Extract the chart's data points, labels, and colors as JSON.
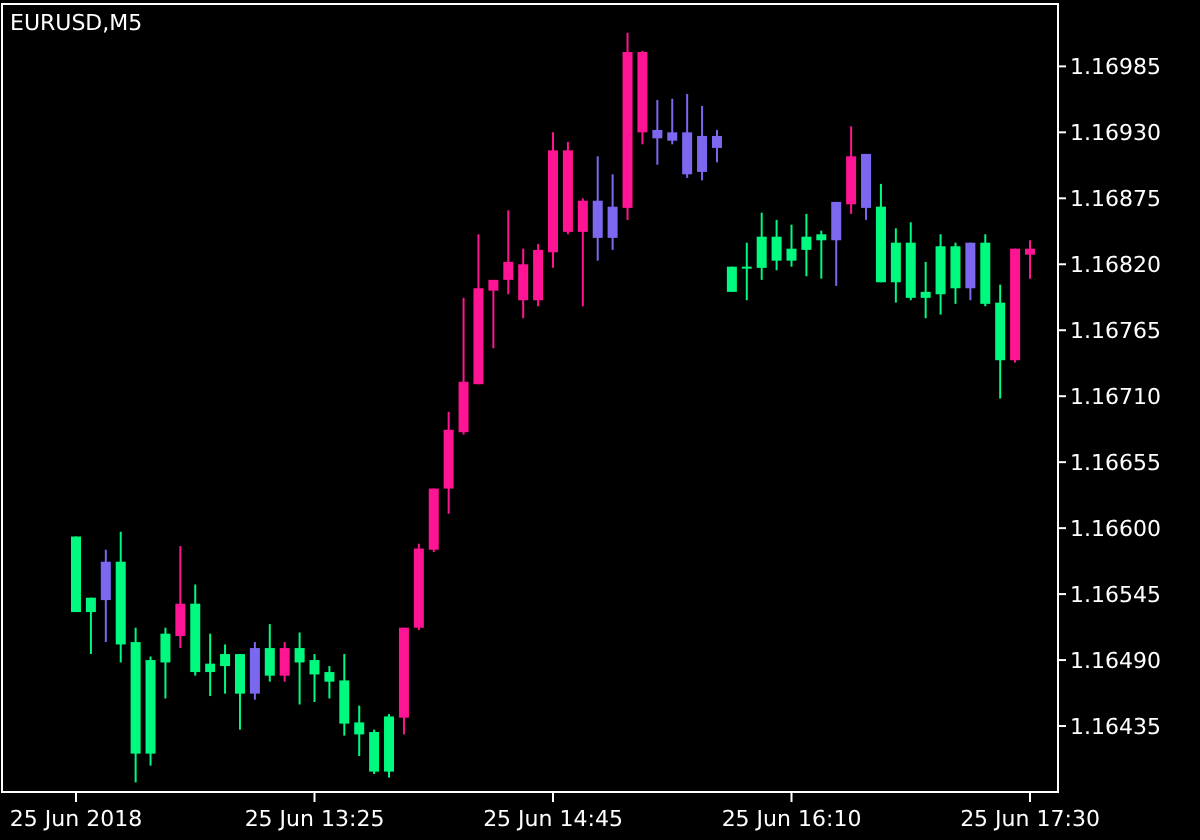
{
  "chart_data": {
    "type": "candlestick",
    "title": "EURUSD,M5",
    "categories": [
      "25 Jun 2018",
      null,
      null,
      null,
      null,
      null,
      null,
      null,
      null,
      null,
      null,
      null,
      null,
      null,
      null,
      null,
      "25 Jun 13:25",
      null,
      null,
      null,
      null,
      null,
      null,
      null,
      null,
      null,
      null,
      null,
      null,
      null,
      null,
      null,
      "25 Jun 14:45",
      null,
      null,
      null,
      null,
      null,
      null,
      null,
      null,
      null,
      null,
      null,
      null,
      null,
      null,
      null,
      "25 Jun 16:10",
      null,
      null,
      null,
      null,
      null,
      null,
      null,
      null,
      null,
      null,
      null,
      null,
      null,
      null,
      null,
      "25 Jun 17:30"
    ],
    "ohlc": [
      [
        1.1653,
        1.16593,
        1.1653,
        1.16593
      ],
      [
        1.1653,
        1.16542,
        1.16495,
        1.16542
      ],
      [
        1.1654,
        1.16582,
        1.16505,
        1.16572
      ],
      [
        1.16503,
        1.16597,
        1.16488,
        1.16572
      ],
      [
        1.16412,
        1.16517,
        1.16388,
        1.16505
      ],
      [
        1.16412,
        1.16493,
        1.16402,
        1.1649
      ],
      [
        1.16488,
        1.16517,
        1.16458,
        1.16512
      ],
      [
        1.1651,
        1.16585,
        1.165,
        1.16537
      ],
      [
        1.1648,
        1.16553,
        1.16477,
        1.16537
      ],
      [
        1.1648,
        1.16512,
        1.1646,
        1.16487
      ],
      [
        1.16485,
        1.16503,
        1.16462,
        1.16495
      ],
      [
        1.16462,
        1.16495,
        1.16432,
        1.16495
      ],
      [
        1.16462,
        1.16505,
        1.16457,
        1.165
      ],
      [
        1.16477,
        1.1652,
        1.16472,
        1.165
      ],
      [
        1.16477,
        1.16505,
        1.16472,
        1.165
      ],
      [
        1.16488,
        1.16513,
        1.16453,
        1.165
      ],
      [
        1.16478,
        1.16495,
        1.16455,
        1.1649
      ],
      [
        1.16472,
        1.16485,
        1.16458,
        1.1648
      ],
      [
        1.16437,
        1.16495,
        1.16427,
        1.16473
      ],
      [
        1.16428,
        1.16452,
        1.1641,
        1.16438
      ],
      [
        1.16397,
        1.16432,
        1.16395,
        1.1643
      ],
      [
        1.16397,
        1.16445,
        1.16392,
        1.16443
      ],
      [
        1.16442,
        1.16517,
        1.16428,
        1.16517
      ],
      [
        1.16517,
        1.16587,
        1.16515,
        1.16583
      ],
      [
        1.16582,
        1.16633,
        1.1658,
        1.16633
      ],
      [
        1.16633,
        1.16697,
        1.16612,
        1.16682
      ],
      [
        1.1668,
        1.16792,
        1.16678,
        1.16722
      ],
      [
        1.1672,
        1.16845,
        1.1672,
        1.168
      ],
      [
        1.16798,
        1.16807,
        1.1675,
        1.16807
      ],
      [
        1.16807,
        1.16865,
        1.16795,
        1.16822
      ],
      [
        1.1679,
        1.16833,
        1.16775,
        1.1682
      ],
      [
        1.1679,
        1.16837,
        1.16785,
        1.16832
      ],
      [
        1.1683,
        1.1693,
        1.16817,
        1.16915
      ],
      [
        1.16847,
        1.16922,
        1.16845,
        1.16915
      ],
      [
        1.16847,
        1.16875,
        1.16785,
        1.16873
      ],
      [
        1.16842,
        1.1691,
        1.16823,
        1.16873
      ],
      [
        1.16842,
        1.16895,
        1.16832,
        1.16868
      ],
      [
        1.16867,
        1.17013,
        1.16857,
        1.16997
      ],
      [
        1.1693,
        1.16998,
        1.1692,
        1.16997
      ],
      [
        1.16925,
        1.16957,
        1.16903,
        1.16932
      ],
      [
        1.16923,
        1.16958,
        1.1692,
        1.1693
      ],
      [
        1.16895,
        1.16962,
        1.16892,
        1.1693
      ],
      [
        1.16897,
        1.16952,
        1.1689,
        1.16927
      ],
      [
        1.16917,
        1.16932,
        1.16905,
        1.16927
      ],
      [
        1.16797,
        1.16818,
        1.16797,
        1.16818
      ],
      [
        1.16817,
        1.16838,
        1.1679,
        1.16818
      ],
      [
        1.16817,
        1.16863,
        1.16807,
        1.16843
      ],
      [
        1.16823,
        1.16857,
        1.16815,
        1.16843
      ],
      [
        1.16823,
        1.16853,
        1.16818,
        1.16833
      ],
      [
        1.16832,
        1.16862,
        1.1681,
        1.16843
      ],
      [
        1.1684,
        1.16848,
        1.16808,
        1.16845
      ],
      [
        1.1684,
        1.16872,
        1.16802,
        1.16872
      ],
      [
        1.1687,
        1.16935,
        1.16862,
        1.1691
      ],
      [
        1.16867,
        1.16912,
        1.16857,
        1.16912
      ],
      [
        1.16805,
        1.16887,
        1.16805,
        1.16868
      ],
      [
        1.16805,
        1.1685,
        1.16788,
        1.16838
      ],
      [
        1.16792,
        1.16855,
        1.1679,
        1.16838
      ],
      [
        1.16792,
        1.16822,
        1.16775,
        1.16797
      ],
      [
        1.16795,
        1.16845,
        1.16778,
        1.16835
      ],
      [
        1.168,
        1.16838,
        1.16787,
        1.16835
      ],
      [
        1.168,
        1.16838,
        1.1679,
        1.16838
      ],
      [
        1.16787,
        1.16845,
        1.16785,
        1.16838
      ],
      [
        1.1674,
        1.16803,
        1.16708,
        1.16788
      ],
      [
        1.1674,
        1.16833,
        1.16738,
        1.16833
      ],
      [
        1.16828,
        1.1684,
        1.16808,
        1.16833
      ]
    ],
    "colors": [
      "#00fa7f",
      "#00fa7f",
      "#7b68ee",
      "#00fa7f",
      "#00fa7f",
      "#00fa7f",
      "#00fa7f",
      "#ff1493",
      "#00fa7f",
      "#00fa7f",
      "#00fa7f",
      "#00fa7f",
      "#7b68ee",
      "#00fa7f",
      "#ff1493",
      "#00fa7f",
      "#00fa7f",
      "#00fa7f",
      "#00fa7f",
      "#00fa7f",
      "#00fa7f",
      "#00fa7f",
      "#ff1493",
      "#ff1493",
      "#ff1493",
      "#ff1493",
      "#ff1493",
      "#ff1493",
      "#ff1493",
      "#ff1493",
      "#ff1493",
      "#ff1493",
      "#ff1493",
      "#ff1493",
      "#ff1493",
      "#7b68ee",
      "#7b68ee",
      "#ff1493",
      "#ff1493",
      "#7b68ee",
      "#7b68ee",
      "#7b68ee",
      "#7b68ee",
      "#7b68ee",
      "#00fa7f",
      "#00fa7f",
      "#00fa7f",
      "#00fa7f",
      "#00fa7f",
      "#00fa7f",
      "#00fa7f",
      "#7b68ee",
      "#ff1493",
      "#7b68ee",
      "#00fa7f",
      "#00fa7f",
      "#00fa7f",
      "#00fa7f",
      "#00fa7f",
      "#00fa7f",
      "#7b68ee",
      "#00fa7f",
      "#00fa7f",
      "#ff1493",
      "#ff1493"
    ],
    "ylim": [
      1.1638,
      1.17037
    ],
    "yticks": [
      1.16985,
      {
        "value": 1.1693,
        "label": "1.16930"
      },
      1.16875,
      {
        "value": 1.1682,
        "label": "1.16820"
      },
      1.16765,
      {
        "value": 1.1671,
        "label": "1.16710"
      },
      1.16655,
      {
        "value": 1.166,
        "label": "1.16600"
      },
      1.16545,
      {
        "value": 1.1649,
        "label": "1.16490"
      },
      1.16435
    ],
    "grid": false
  }
}
